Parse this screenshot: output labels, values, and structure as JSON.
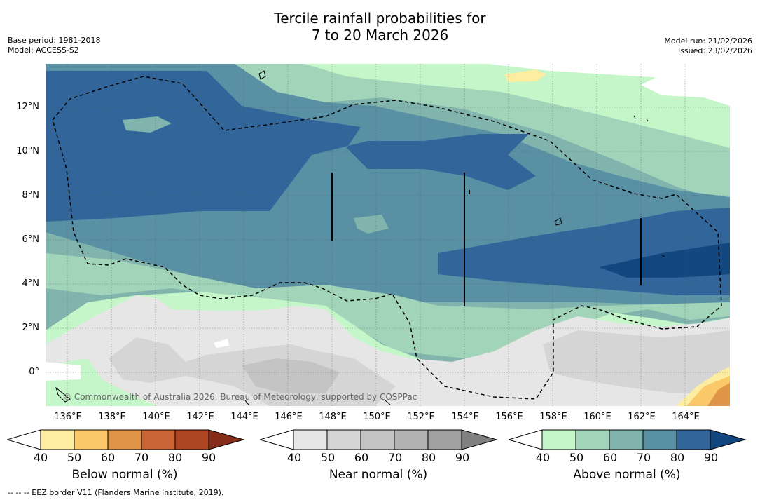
{
  "title": {
    "line1": "Tercile rainfall probabilities for",
    "line2": "7 to 20 March 2026"
  },
  "meta_left": {
    "base_period": "Base period: 1981-2018",
    "model": "Model: ACCESS-S2"
  },
  "meta_right": {
    "model_run": "Model run: 21/02/2026",
    "issued": "Issued: 23/02/2026"
  },
  "map": {
    "copyright": "© Commonwealth of Australia 2026, Bureau of Meteorology, supported by COSPPac",
    "x_ticks": [
      "136°E",
      "138°E",
      "140°E",
      "142°E",
      "144°E",
      "146°E",
      "148°E",
      "150°E",
      "152°E",
      "154°E",
      "156°E",
      "158°E",
      "160°E",
      "162°E",
      "164°E"
    ],
    "y_ticks": [
      "12°N",
      "10°N",
      "8°N",
      "6°N",
      "4°N",
      "2°N",
      "0°"
    ],
    "lon_range": [
      135,
      166
    ],
    "lat_range": [
      -1.5,
      14
    ]
  },
  "colorbars": [
    {
      "id": "below",
      "title": "Below normal (%)",
      "ticks": [
        "40",
        "50",
        "60",
        "70",
        "80",
        "90"
      ],
      "colors": [
        "#ffffff",
        "#fdeda0",
        "#fbc96a",
        "#e09448",
        "#cc6535",
        "#ae4523",
        "#862d19"
      ]
    },
    {
      "id": "near",
      "title": "Near normal (%)",
      "ticks": [
        "40",
        "50",
        "60",
        "70",
        "80",
        "90"
      ],
      "colors": [
        "#ffffff",
        "#e6e6e6",
        "#d5d5d5",
        "#c4c4c4",
        "#b2b2b2",
        "#a0a0a0",
        "#808080"
      ]
    },
    {
      "id": "above",
      "title": "Above normal (%)",
      "ticks": [
        "40",
        "50",
        "60",
        "70",
        "80",
        "90"
      ],
      "colors": [
        "#ffffff",
        "#c4f6c9",
        "#a2d4b9",
        "#80b4ac",
        "#5a90a4",
        "#32659a",
        "#13477f"
      ]
    }
  ],
  "footnote": "--  --  -- EEZ border V11 (Flanders Marine Institute, 2019)."
}
